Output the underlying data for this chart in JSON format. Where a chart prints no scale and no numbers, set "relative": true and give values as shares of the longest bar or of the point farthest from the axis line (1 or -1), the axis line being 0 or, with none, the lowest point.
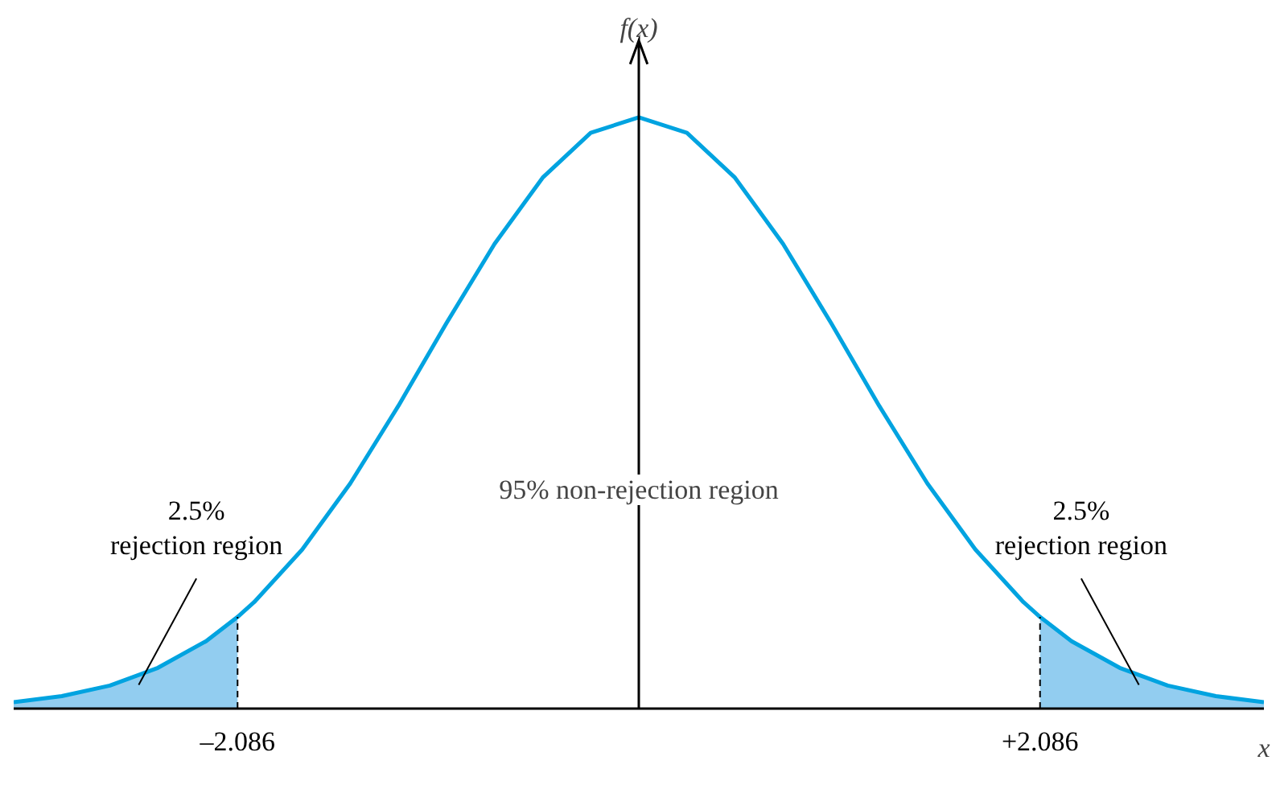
{
  "chart_data": {
    "type": "line",
    "relative": true,
    "xlabel": "x",
    "ylabel": "f(x)",
    "xlim": [
      -3.25,
      3.25
    ],
    "xticks": [
      {
        "value": -2.086,
        "label": "–2.086"
      },
      {
        "value": 2.086,
        "label": "+2.086"
      }
    ],
    "grid": false,
    "marker": "none",
    "line_style": "solid",
    "ref_lines": [
      {
        "axis": "x",
        "value": -2.086,
        "color": "#000000",
        "line_style": "dashed"
      },
      {
        "axis": "x",
        "value": 2.086,
        "color": "#000000",
        "line_style": "dashed"
      }
    ],
    "series": [
      {
        "color": "#00a3e0",
        "x": [
          -3.25,
          -3.0,
          -2.75,
          -2.5,
          -2.25,
          -2.086,
          -2.0,
          -1.75,
          -1.5,
          -1.25,
          -1.0,
          -0.75,
          -0.5,
          -0.25,
          0,
          0.25,
          0.5,
          0.75,
          1.0,
          1.25,
          1.5,
          1.75,
          2.0,
          2.086,
          2.25,
          2.5,
          2.75,
          3.0,
          3.25
        ],
        "values": [
          0.011,
          0.021,
          0.039,
          0.069,
          0.114,
          0.155,
          0.18,
          0.269,
          0.381,
          0.512,
          0.652,
          0.786,
          0.898,
          0.974,
          1,
          0.974,
          0.898,
          0.786,
          0.652,
          0.512,
          0.381,
          0.269,
          0.18,
          0.155,
          0.114,
          0.069,
          0.039,
          0.021,
          0.011
        ]
      },
      {
        "type": "area",
        "color": "#92cdf0",
        "x": [
          -3.25,
          -3.0,
          -2.75,
          -2.5,
          -2.25,
          -2.086
        ],
        "values": [
          0.011,
          0.021,
          0.039,
          0.069,
          0.114,
          0.155
        ]
      },
      {
        "type": "area",
        "color": "#92cdf0",
        "x": [
          2.086,
          2.25,
          2.5,
          2.75,
          3.0,
          3.25
        ],
        "values": [
          0.155,
          0.114,
          0.069,
          0.039,
          0.021,
          0.011
        ]
      }
    ],
    "annotations": [
      {
        "text": "2.5%\nrejection region",
        "x": -2.6,
        "y": 0.04
      },
      "95% non-rejection region",
      {
        "text": "2.5%\nrejection region",
        "x": 2.6,
        "y": 0.04
      }
    ]
  }
}
